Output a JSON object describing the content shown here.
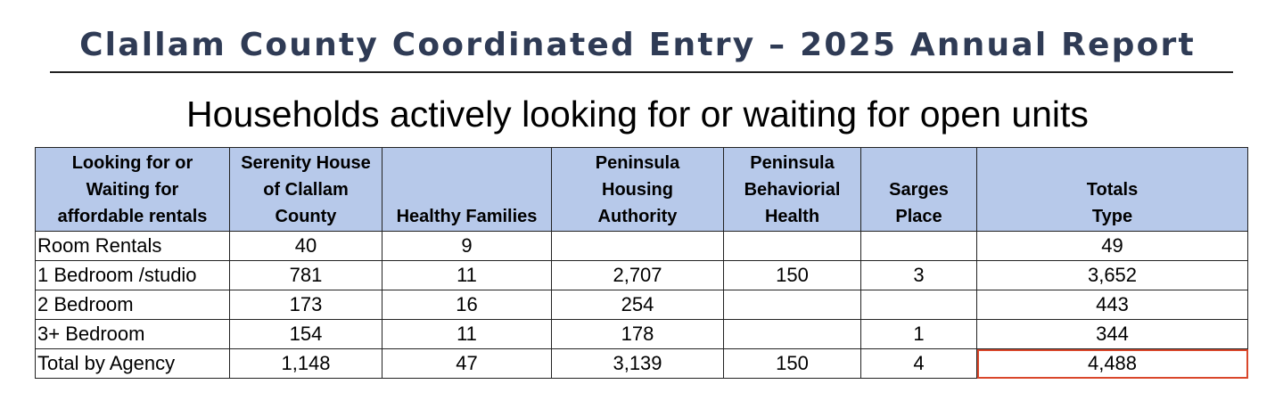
{
  "report": {
    "title": "Clallam County Coordinated Entry – 2025 Annual Report"
  },
  "table": {
    "heading": "Households actively looking for or waiting for open units",
    "columns": [
      "Looking for or\nWaiting for\naffordable rentals",
      "Serenity House\nof Clallam\nCounty",
      "Healthy Families",
      "Peninsula\nHousing\nAuthority",
      "Peninsula\nBehaviorial\nHealth",
      "Sarges\nPlace",
      "Totals\nType"
    ],
    "rows": [
      {
        "label": "Room Rentals",
        "cells": [
          "40",
          "9",
          "",
          "",
          "",
          "49"
        ]
      },
      {
        "label": "1 Bedroom /studio",
        "cells": [
          "781",
          "11",
          "2,707",
          "150",
          "3",
          "3,652"
        ]
      },
      {
        "label": "2 Bedroom",
        "cells": [
          "173",
          "16",
          "254",
          "",
          "",
          "443"
        ]
      },
      {
        "label": "3+ Bedroom",
        "cells": [
          "154",
          "11",
          "178",
          "",
          "1",
          "344"
        ]
      },
      {
        "label": "Total by Agency",
        "cells": [
          "1,148",
          "47",
          "3,139",
          "150",
          "4",
          "4,488"
        ]
      }
    ],
    "highlight_color": "#d9472b",
    "header_fill": "#b7c9ea",
    "title_color": "#2f3b55"
  }
}
